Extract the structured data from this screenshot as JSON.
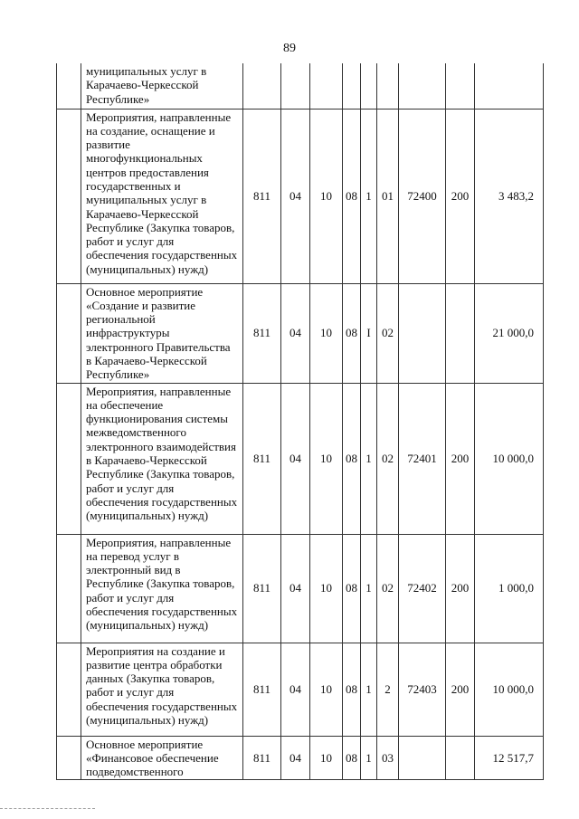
{
  "page_number": "89",
  "rows": [
    {
      "text": "муниципальных услуг в Карачаево-Черкесской Республике»",
      "c": [
        "",
        "",
        "",
        "",
        "",
        "",
        "",
        "",
        ""
      ]
    },
    {
      "text": "Мероприятия, направленные на создание, оснащение и развитие многофункциональных центров предоставления государственных и муниципальных услуг в Карачаево-Черкесской Республике (Закупка товаров, работ и услуг для обеспечения государственных (муниципальных) нужд)",
      "c": [
        "811",
        "04",
        "10",
        "08",
        "1",
        "01",
        "72400",
        "200",
        "3 483,2"
      ]
    },
    {
      "text": "Основное мероприятие «Создание и развитие региональной инфраструктуры электронного Правительства в Карачаево-Черкесской Республике»",
      "c": [
        "811",
        "04",
        "10",
        "08",
        "I",
        "02",
        "",
        "",
        "21 000,0"
      ]
    },
    {
      "text": "Мероприятия, направленные на обеспечение функционирования системы межведомственного электронного взаимодействия в Карачаево-Черкесской Республике (Закупка товаров, работ и услуг для обеспечения государственных (муниципальных) нужд)",
      "c": [
        "811",
        "04",
        "10",
        "08",
        "1",
        "02",
        "72401",
        "200",
        "10 000,0"
      ]
    },
    {
      "text": "Мероприятия, направленные на перевод услуг в электронный вид в Республике (Закупка товаров, работ и услуг для обеспечения государственных (муниципальных) нужд)",
      "c": [
        "811",
        "04",
        "10",
        "08",
        "1",
        "02",
        "72402",
        "200",
        "1 000,0"
      ]
    },
    {
      "text": "Мероприятия на создание и развитие центра обработки данных (Закупка товаров, работ и услуг для обеспечения государственных (муниципальных) нужд)",
      "c": [
        "811",
        "04",
        "10",
        "08",
        "1",
        "2",
        "72403",
        "200",
        "10 000,0"
      ]
    },
    {
      "text": "Основное мероприятие «Финансовое обеспечение подведомственного",
      "c": [
        "811",
        "04",
        "10",
        "08",
        "1",
        "03",
        "",
        "",
        "12 517,7"
      ]
    }
  ]
}
